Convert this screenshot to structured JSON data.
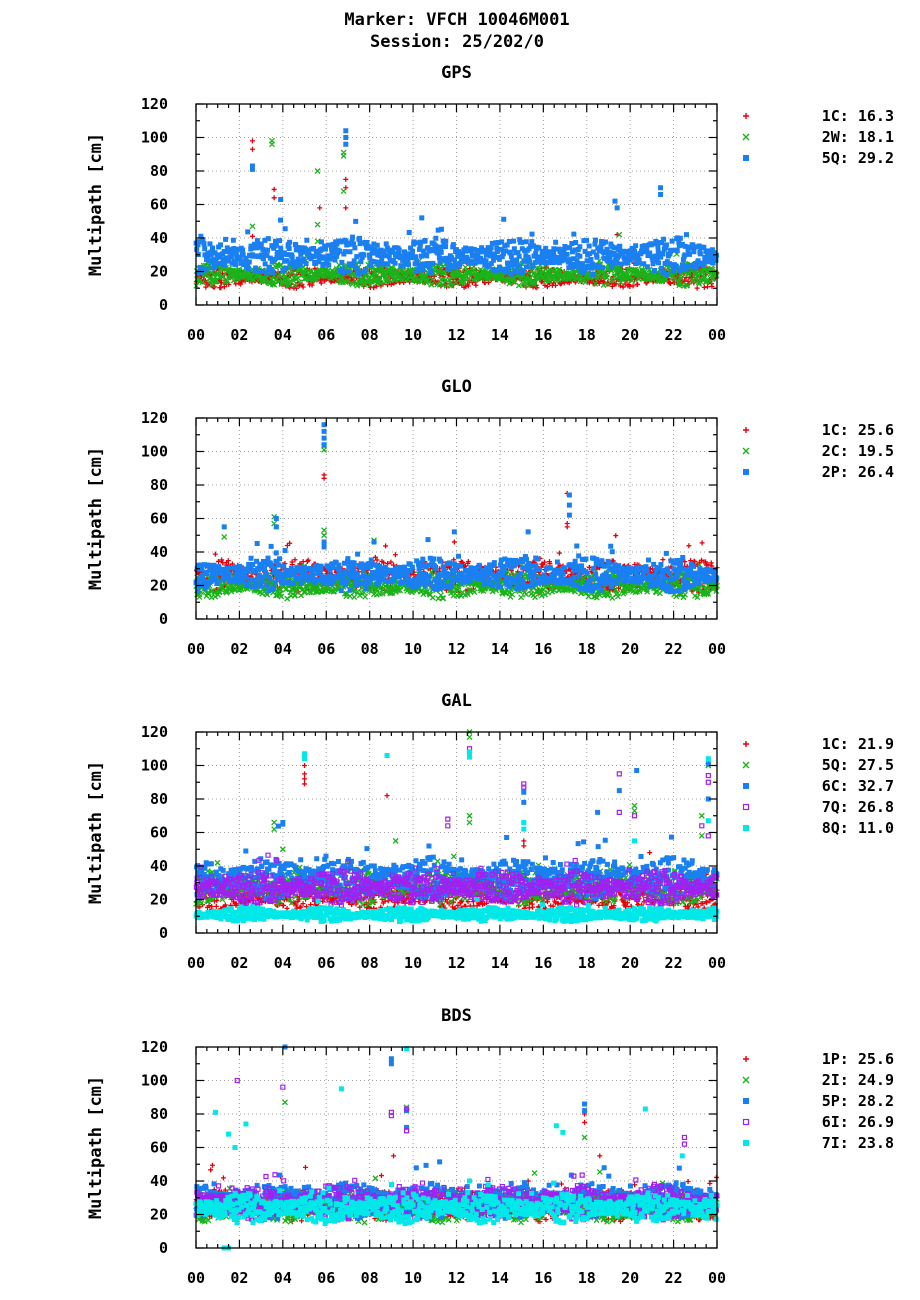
{
  "header": {
    "line1": "Marker: VFCH 10046M001",
    "line2": "Session: 25/202/0"
  },
  "colors": {
    "red": "#e8000b",
    "green": "#1ab31a",
    "blue": "#1a7ff0",
    "purple": "#a020f0",
    "cyan": "#00e8e8",
    "grid": "#a0a0a0"
  },
  "chart_data": [
    {
      "type": "scatter",
      "title": "GPS",
      "ylabel": "Multipath [cm]",
      "ylim": [
        0,
        120
      ],
      "yticks": [
        "0",
        "20",
        "40",
        "60",
        "80",
        "100",
        "120"
      ],
      "xlim": [
        0,
        24
      ],
      "xticks": [
        "00",
        "02",
        "04",
        "06",
        "08",
        "10",
        "12",
        "14",
        "16",
        "18",
        "20",
        "22",
        "00"
      ],
      "grid": true,
      "legend_position": "right",
      "series": [
        {
          "name": "1C",
          "legend": "1C: 16.3",
          "mean": 16.3,
          "marker": "plus",
          "color": "#e8000b",
          "outliers": [
            [
              2.6,
              98
            ],
            [
              2.6,
              93
            ],
            [
              2.6,
              41
            ],
            [
              3.6,
              69
            ],
            [
              3.6,
              64
            ],
            [
              5.7,
              58
            ],
            [
              6.9,
              75
            ],
            [
              6.9,
              70
            ],
            [
              6.9,
              58
            ],
            [
              19.4,
              42
            ]
          ]
        },
        {
          "name": "2W",
          "legend": "2W: 18.1",
          "mean": 18.1,
          "marker": "cross",
          "color": "#1ab31a",
          "outliers": [
            [
              2.6,
              47
            ],
            [
              3.5,
              98
            ],
            [
              3.5,
              96
            ],
            [
              5.6,
              80
            ],
            [
              5.6,
              48
            ],
            [
              5.6,
              38
            ],
            [
              6.8,
              91
            ],
            [
              6.8,
              89
            ],
            [
              6.8,
              68
            ],
            [
              19.5,
              42
            ]
          ]
        },
        {
          "name": "5Q",
          "legend": "5Q: 29.2",
          "mean": 29.2,
          "marker": "square",
          "color": "#1a7ff0",
          "outliers": [
            [
              2.6,
              83
            ],
            [
              2.6,
              81
            ],
            [
              3.9,
              63
            ],
            [
              6.9,
              104
            ],
            [
              6.9,
              100
            ],
            [
              6.9,
              96
            ],
            [
              10.4,
              52
            ],
            [
              19.3,
              62
            ],
            [
              19.4,
              58
            ],
            [
              21.4,
              70
            ],
            [
              21.4,
              66
            ]
          ]
        }
      ]
    },
    {
      "type": "scatter",
      "title": "GLO",
      "ylabel": "Multipath [cm]",
      "ylim": [
        0,
        120
      ],
      "yticks": [
        "0",
        "20",
        "40",
        "60",
        "80",
        "100",
        "120"
      ],
      "xlim": [
        0,
        24
      ],
      "xticks": [
        "00",
        "02",
        "04",
        "06",
        "08",
        "10",
        "12",
        "14",
        "16",
        "18",
        "20",
        "22",
        "00"
      ],
      "grid": true,
      "legend_position": "right",
      "series": [
        {
          "name": "1C",
          "legend": "1C: 25.6",
          "mean": 25.6,
          "marker": "plus",
          "color": "#e8000b",
          "outliers": [
            [
              5.9,
              86
            ],
            [
              5.9,
              84
            ],
            [
              11.9,
              46
            ],
            [
              17.1,
              75
            ],
            [
              17.1,
              57
            ],
            [
              17.1,
              55
            ]
          ]
        },
        {
          "name": "2C",
          "legend": "2C: 19.5",
          "mean": 19.5,
          "marker": "cross",
          "color": "#1ab31a",
          "outliers": [
            [
              1.3,
              49
            ],
            [
              3.6,
              61
            ],
            [
              3.6,
              57
            ],
            [
              5.9,
              103
            ],
            [
              5.9,
              101
            ],
            [
              5.9,
              53
            ],
            [
              5.9,
              50
            ],
            [
              8.2,
              47
            ]
          ]
        },
        {
          "name": "2P",
          "legend": "2P: 26.4",
          "mean": 26.4,
          "marker": "square",
          "color": "#1a7ff0",
          "outliers": [
            [
              1.3,
              55
            ],
            [
              3.7,
              60
            ],
            [
              3.7,
              55
            ],
            [
              5.9,
              116
            ],
            [
              5.9,
              112
            ],
            [
              5.9,
              108
            ],
            [
              5.9,
              104
            ],
            [
              5.9,
              46
            ],
            [
              5.9,
              43
            ],
            [
              8.2,
              46
            ],
            [
              11.9,
              52
            ],
            [
              15.3,
              52
            ],
            [
              17.2,
              74
            ],
            [
              17.2,
              68
            ],
            [
              17.2,
              62
            ]
          ]
        }
      ]
    },
    {
      "type": "scatter",
      "title": "GAL",
      "ylabel": "Multipath [cm]",
      "ylim": [
        0,
        120
      ],
      "yticks": [
        "0",
        "20",
        "40",
        "60",
        "80",
        "100",
        "120"
      ],
      "xlim": [
        0,
        24
      ],
      "xticks": [
        "00",
        "02",
        "04",
        "06",
        "08",
        "10",
        "12",
        "14",
        "16",
        "18",
        "20",
        "22",
        "00"
      ],
      "grid": true,
      "legend_position": "right",
      "series": [
        {
          "name": "1C",
          "legend": "1C: 21.9",
          "mean": 21.9,
          "marker": "plus",
          "color": "#e8000b",
          "outliers": [
            [
              5.0,
              100
            ],
            [
              5.0,
              95
            ],
            [
              5.0,
              92
            ],
            [
              5.0,
              89
            ],
            [
              8.8,
              82
            ],
            [
              15.1,
              55
            ],
            [
              15.1,
              52
            ],
            [
              20.9,
              48
            ]
          ]
        },
        {
          "name": "5Q",
          "legend": "5Q: 27.5",
          "mean": 27.5,
          "marker": "cross",
          "color": "#1ab31a",
          "outliers": [
            [
              3.6,
              66
            ],
            [
              3.6,
              62
            ],
            [
              4.0,
              50
            ],
            [
              9.2,
              55
            ],
            [
              12.6,
              120
            ],
            [
              12.6,
              117
            ],
            [
              12.6,
              70
            ],
            [
              12.6,
              66
            ],
            [
              20.2,
              76
            ],
            [
              20.2,
              73
            ],
            [
              23.3,
              70
            ],
            [
              23.3,
              58
            ],
            [
              23.6,
              100
            ]
          ]
        },
        {
          "name": "6C",
          "legend": "6C: 32.7",
          "mean": 32.7,
          "marker": "square",
          "color": "#1a7ff0",
          "outliers": [
            [
              4.0,
              66
            ],
            [
              4.0,
              65
            ],
            [
              15.1,
              84
            ],
            [
              15.1,
              78
            ],
            [
              18.5,
              72
            ],
            [
              19.5,
              85
            ],
            [
              20.3,
              97
            ],
            [
              23.6,
              101
            ],
            [
              23.6,
              80
            ]
          ]
        },
        {
          "name": "7Q",
          "legend": "7Q: 26.8",
          "mean": 26.8,
          "marker": "osquare",
          "color": "#a020f0",
          "outliers": [
            [
              11.6,
              68
            ],
            [
              11.6,
              64
            ],
            [
              12.6,
              110
            ],
            [
              12.6,
              108
            ],
            [
              15.1,
              89
            ],
            [
              15.1,
              87
            ],
            [
              19.5,
              95
            ],
            [
              19.5,
              72
            ],
            [
              20.2,
              70
            ],
            [
              23.3,
              64
            ],
            [
              23.6,
              94
            ],
            [
              23.6,
              90
            ],
            [
              23.6,
              58
            ]
          ]
        },
        {
          "name": "8Q",
          "legend": "8Q: 11.0",
          "mean": 11.0,
          "marker": "square",
          "color": "#00e8e8",
          "outliers": [
            [
              5.0,
              107
            ],
            [
              5.0,
              104
            ],
            [
              8.8,
              106
            ],
            [
              12.6,
              108
            ],
            [
              12.6,
              105
            ],
            [
              15.1,
              66
            ],
            [
              15.1,
              62
            ],
            [
              20.2,
              55
            ],
            [
              23.6,
              104
            ],
            [
              23.6,
              67
            ]
          ]
        }
      ]
    },
    {
      "type": "scatter",
      "title": "BDS",
      "ylabel": "Multipath [cm]",
      "ylim": [
        0,
        120
      ],
      "yticks": [
        "0",
        "20",
        "40",
        "60",
        "80",
        "100",
        "120"
      ],
      "xlim": [
        0,
        24
      ],
      "xticks": [
        "00",
        "02",
        "04",
        "06",
        "08",
        "10",
        "12",
        "14",
        "16",
        "18",
        "20",
        "22",
        "00"
      ],
      "grid": true,
      "legend_position": "right",
      "series": [
        {
          "name": "1P",
          "legend": "1P: 25.6",
          "mean": 25.6,
          "marker": "plus",
          "color": "#e8000b",
          "outliers": [
            [
              17.9,
              80
            ],
            [
              17.9,
              75
            ],
            [
              18.6,
              55
            ],
            [
              9.1,
              55
            ]
          ]
        },
        {
          "name": "2I",
          "legend": "2I: 24.9",
          "mean": 24.9,
          "marker": "cross",
          "color": "#1ab31a",
          "outliers": [
            [
              4.1,
              87
            ],
            [
              9.7,
              84
            ],
            [
              17.9,
              66
            ],
            [
              1.9,
              17
            ]
          ]
        },
        {
          "name": "5P",
          "legend": "5P: 28.2",
          "mean": 28.2,
          "marker": "square",
          "color": "#1a7ff0",
          "outliers": [
            [
              4.1,
              120
            ],
            [
              9.0,
              113
            ],
            [
              9.0,
              110
            ],
            [
              9.7,
              82
            ],
            [
              9.7,
              72
            ],
            [
              17.9,
              86
            ],
            [
              17.9,
              82
            ]
          ]
        },
        {
          "name": "6I",
          "legend": "6I: 26.9",
          "mean": 26.9,
          "marker": "osquare",
          "color": "#a020f0",
          "outliers": [
            [
              1.9,
              100
            ],
            [
              4.0,
              96
            ],
            [
              9.0,
              81
            ],
            [
              9.0,
              79
            ],
            [
              9.7,
              83
            ],
            [
              9.7,
              70
            ],
            [
              22.5,
              66
            ],
            [
              22.5,
              62
            ]
          ]
        },
        {
          "name": "7I",
          "legend": "7I: 23.8",
          "mean": 23.8,
          "marker": "square",
          "color": "#00e8e8",
          "outliers": [
            [
              0.9,
              81
            ],
            [
              1.5,
              68
            ],
            [
              1.8,
              60
            ],
            [
              2.3,
              74
            ],
            [
              6.7,
              95
            ],
            [
              9.7,
              119
            ],
            [
              16.6,
              73
            ],
            [
              16.9,
              69
            ],
            [
              20.7,
              83
            ],
            [
              22.4,
              55
            ],
            [
              1.3,
              0
            ],
            [
              1.5,
              0
            ]
          ]
        }
      ]
    }
  ]
}
